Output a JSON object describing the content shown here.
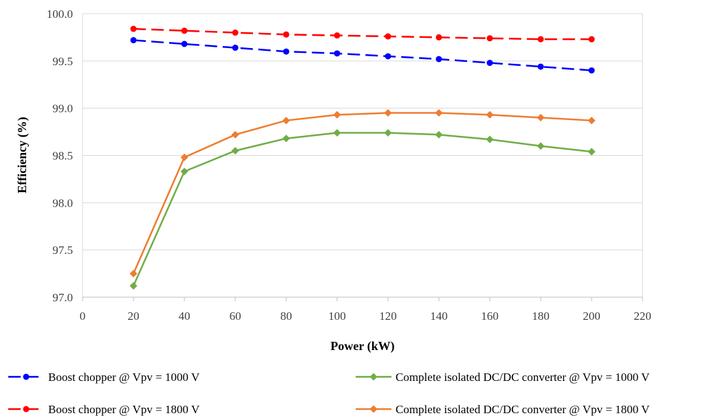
{
  "chart_data": {
    "type": "line",
    "xlabel": "Power (kW)",
    "ylabel": "Efficiency (%)",
    "xlim": [
      0,
      220
    ],
    "ylim": [
      97.0,
      100.0
    ],
    "x_ticks": [
      "0",
      "20",
      "40",
      "60",
      "80",
      "100",
      "120",
      "140",
      "160",
      "180",
      "200",
      "220"
    ],
    "y_ticks": [
      "97.0",
      "97.5",
      "98.0",
      "98.5",
      "99.0",
      "99.5",
      "100.0"
    ],
    "grid": "horizontal",
    "legend_position": "bottom",
    "x": [
      20,
      40,
      60,
      80,
      100,
      120,
      140,
      160,
      180,
      200
    ],
    "series": [
      {
        "name": "Boost chopper @ Vpv = 1000 V",
        "color": "#0000FF",
        "marker": "circle",
        "dashed": true,
        "values": [
          99.72,
          99.68,
          99.64,
          99.6,
          99.58,
          99.55,
          99.52,
          99.48,
          99.44,
          99.4
        ]
      },
      {
        "name": "Complete isolated DC/DC converter @ Vpv = 1000 V",
        "color": "#70AD47",
        "marker": "diamond",
        "dashed": false,
        "values": [
          97.12,
          98.33,
          98.55,
          98.68,
          98.74,
          98.74,
          98.72,
          98.67,
          98.6,
          98.54
        ]
      },
      {
        "name": "Boost chopper @ Vpv = 1800 V",
        "color": "#FF0000",
        "marker": "circle",
        "dashed": true,
        "values": [
          99.84,
          99.82,
          99.8,
          99.78,
          99.77,
          99.76,
          99.75,
          99.74,
          99.73,
          99.73
        ]
      },
      {
        "name": "Complete isolated DC/DC converter @ Vpv = 1800 V",
        "color": "#ED7D31",
        "marker": "diamond",
        "dashed": false,
        "values": [
          97.25,
          98.48,
          98.72,
          98.87,
          98.93,
          98.95,
          98.95,
          98.93,
          98.9,
          98.87
        ]
      }
    ]
  }
}
